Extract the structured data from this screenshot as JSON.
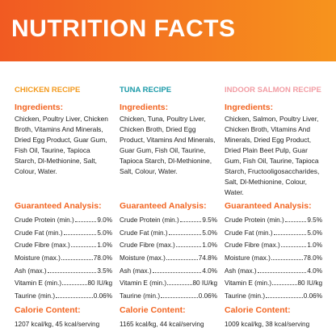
{
  "header": {
    "title": "NUTRITION FACTS"
  },
  "columns": [
    {
      "recipe": "CHICKEN RECIPE",
      "ingredients_heading": "Ingredients:",
      "ingredients": "Chicken, Poultry Liver, Chicken Broth, Vitamins And Minerals, Dried Egg Product, Guar Gum, Fish Oil, Taurine, Tapioca Starch, Dl-Methionine, Salt, Colour, Water.",
      "analysis_heading": "Guaranteed Analysis:",
      "analysis": [
        {
          "label": "Crude Protein (min.)",
          "value": "9.0%"
        },
        {
          "label": "Crude Fat (min.)",
          "value": "5.0%"
        },
        {
          "label": "Crude Fibre (max.)",
          "value": "1.0%"
        },
        {
          "label": "Moisture (max.)",
          "value": "78.0%"
        },
        {
          "label": "Ash (max.)",
          "value": "3.5%"
        },
        {
          "label": "Vitamin E (min.)",
          "value": "80 IU/kg"
        },
        {
          "label": "Taurine (min.)",
          "value": "0.06%"
        }
      ],
      "calorie_heading": "Calorie Content:",
      "calorie": "1207 kcal/kg, 45 kcal/serving"
    },
    {
      "recipe": "TUNA RECIPE",
      "ingredients_heading": "Ingredients:",
      "ingredients": "Chicken, Tuna, Poultry Liver, Chicken Broth, Dried Egg Product, Vitamins And Minerals, Guar Gum, Fish Oil, Taurine, Tapioca Starch, Dl-Methionine, Salt, Colour, Water.",
      "analysis_heading": "Guaranteed Analysis:",
      "analysis": [
        {
          "label": "Crude Protein (min.)",
          "value": "9.5%"
        },
        {
          "label": "Crude Fat (min.)",
          "value": "5.0%"
        },
        {
          "label": "Crude Fibre (max.)",
          "value": "1.0%"
        },
        {
          "label": "Moisture (max.)",
          "value": "74.8%"
        },
        {
          "label": "Ash (max.)",
          "value": "4.0%"
        },
        {
          "label": "Vitamin E (min.)",
          "value": "80 IU/kg"
        },
        {
          "label": "Taurine (min.)",
          "value": "0.06%"
        }
      ],
      "calorie_heading": "Calorie Content:",
      "calorie": "1165 kcal/kg, 44 kcal/serving"
    },
    {
      "recipe": "INDOOR SALMON RECIPE",
      "ingredients_heading": "Ingredients:",
      "ingredients": "Chicken, Salmon, Poultry Liver, Chicken Broth, Vitamins And Minerals, Dried Egg Product, Dried Plain Beet Pulp, Guar Gum, Fish Oil, Taurine, Tapioca Starch, Fructooligosaccharides, Salt, Dl-Methionine, Colour, Water.",
      "analysis_heading": "Guaranteed Analysis:",
      "analysis": [
        {
          "label": "Crude Protein (min.)",
          "value": "9.5%"
        },
        {
          "label": "Crude Fat (min.)",
          "value": "5.0%"
        },
        {
          "label": "Crude Fibre (max.)",
          "value": "1.0%"
        },
        {
          "label": "Moisture (max.)",
          "value": "78.0%"
        },
        {
          "label": "Ash (max.)",
          "value": "4.0%"
        },
        {
          "label": "Vitamin E (min.)",
          "value": "80 IU/kg"
        },
        {
          "label": "Taurine (min.)",
          "value": "0.06%"
        }
      ],
      "calorie_heading": "Calorie Content:",
      "calorie": "1009 kcal/kg, 38 kcal/serving"
    }
  ]
}
